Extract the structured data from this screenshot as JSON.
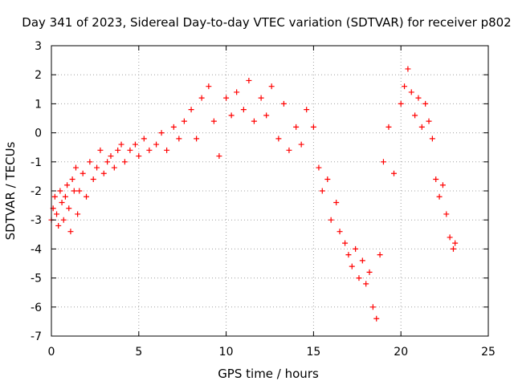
{
  "chart_data": {
    "type": "scatter",
    "title": "Day 341 of 2023, Sidereal Day-to-day VTEC variation (SDTVAR) for receiver p802",
    "xlabel": "GPS time / hours",
    "ylabel": "SDTVAR / TECUs",
    "xlim": [
      0,
      25
    ],
    "ylim": [
      -7,
      3
    ],
    "xticks": [
      0,
      5,
      10,
      15,
      20,
      25
    ],
    "yticks": [
      -7,
      -6,
      -5,
      -4,
      -3,
      -2,
      -1,
      0,
      1,
      2,
      3
    ],
    "grid": true,
    "marker": "+",
    "color": "#ff0000",
    "series": [
      {
        "name": "SDTVAR",
        "x": [
          0.0,
          0.1,
          0.2,
          0.3,
          0.4,
          0.5,
          0.6,
          0.7,
          0.8,
          0.9,
          1.0,
          1.1,
          1.2,
          1.3,
          1.4,
          1.5,
          1.6,
          1.8,
          2.0,
          2.2,
          2.4,
          2.6,
          2.8,
          3.0,
          3.2,
          3.4,
          3.6,
          3.8,
          4.0,
          4.2,
          4.5,
          4.8,
          5.0,
          5.3,
          5.6,
          6.0,
          6.3,
          6.6,
          7.0,
          7.3,
          7.6,
          8.0,
          8.3,
          8.6,
          9.0,
          9.3,
          9.6,
          10.0,
          10.3,
          10.6,
          11.0,
          11.3,
          11.6,
          12.0,
          12.3,
          12.6,
          13.0,
          13.3,
          13.6,
          14.0,
          14.3,
          14.6,
          15.0,
          15.3,
          15.5,
          15.8,
          16.0,
          16.3,
          16.5,
          16.8,
          17.0,
          17.2,
          17.4,
          17.6,
          17.8,
          18.0,
          18.2,
          18.4,
          18.6,
          18.8,
          19.0,
          19.3,
          19.6,
          20.0,
          20.2,
          20.4,
          20.6,
          20.8,
          21.0,
          21.2,
          21.4,
          21.6,
          21.8,
          22.0,
          22.2,
          22.4,
          22.6,
          22.8,
          23.0,
          23.1
        ],
        "y": [
          -3.0,
          -2.6,
          -2.2,
          -2.8,
          -3.2,
          -2.0,
          -2.4,
          -3.0,
          -2.2,
          -1.8,
          -2.6,
          -3.4,
          -1.6,
          -2.0,
          -1.2,
          -2.8,
          -2.0,
          -1.4,
          -2.2,
          -1.0,
          -1.6,
          -1.2,
          -0.6,
          -1.4,
          -1.0,
          -0.8,
          -1.2,
          -0.6,
          -0.4,
          -1.0,
          -0.6,
          -0.4,
          -0.8,
          -0.2,
          -0.6,
          -0.4,
          0.0,
          -0.6,
          0.2,
          -0.2,
          0.4,
          0.8,
          -0.2,
          1.2,
          1.6,
          0.4,
          -0.8,
          1.2,
          0.6,
          1.4,
          0.8,
          1.8,
          0.4,
          1.2,
          0.6,
          1.6,
          -0.2,
          1.0,
          -0.6,
          0.2,
          -0.4,
          0.8,
          0.2,
          -1.2,
          -2.0,
          -1.6,
          -3.0,
          -2.4,
          -3.4,
          -3.8,
          -4.2,
          -4.6,
          -4.0,
          -5.0,
          -4.4,
          -5.2,
          -4.8,
          -6.0,
          -6.4,
          -4.2,
          -1.0,
          0.2,
          -1.4,
          1.0,
          1.6,
          2.2,
          1.4,
          0.6,
          1.2,
          0.2,
          1.0,
          0.4,
          -0.2,
          -1.6,
          -2.2,
          -1.8,
          -2.8,
          -3.6,
          -4.0,
          -3.8
        ]
      }
    ]
  }
}
